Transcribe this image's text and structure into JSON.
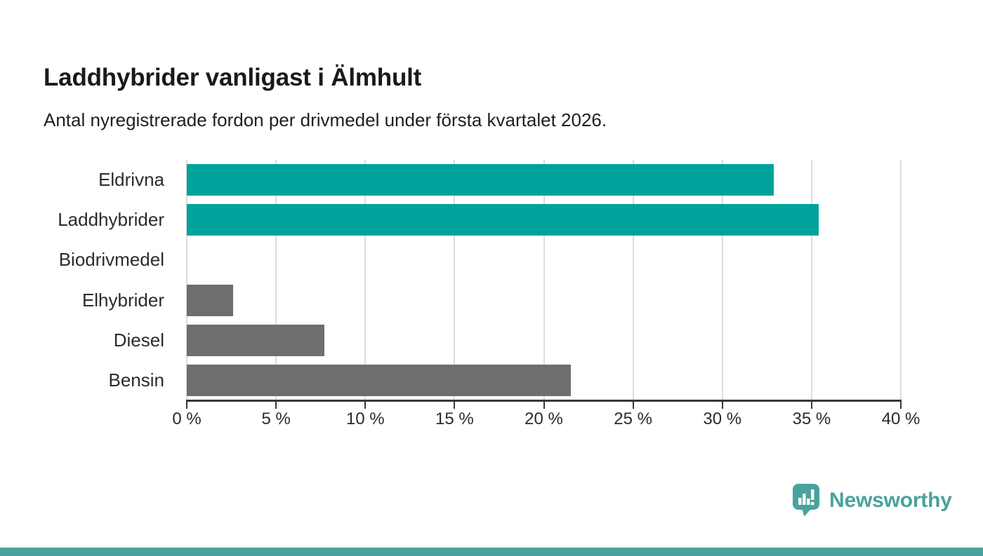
{
  "header": {
    "title": "Laddhybrider vanligast i Älmhult",
    "subtitle": "Antal nyregistrerade fordon per drivmedel under första kvartalet 2026."
  },
  "chart_data": {
    "type": "bar",
    "orientation": "horizontal",
    "title": "Laddhybrider vanligast i Älmhult",
    "subtitle": "Antal nyregistrerade fordon per drivmedel under första kvartalet 2026.",
    "categories": [
      "Eldrivna",
      "Laddhybrider",
      "Biodrivmedel",
      "Elhybrider",
      "Diesel",
      "Bensin"
    ],
    "values": [
      32.9,
      35.4,
      0,
      2.6,
      7.7,
      21.5
    ],
    "unit": "%",
    "bar_colors": [
      "#00a39b",
      "#00a39b",
      "#6e6e70",
      "#6e6e70",
      "#6e6e70",
      "#6e6e70"
    ],
    "xlim": [
      0,
      40
    ],
    "x_ticks": [
      0,
      5,
      10,
      15,
      20,
      25,
      30,
      35,
      40
    ],
    "x_tick_labels": [
      "0 %",
      "5 %",
      "10 %",
      "15 %",
      "20 %",
      "25 %",
      "30 %",
      "35 %",
      "40 %"
    ],
    "grid": true,
    "legend": "none"
  },
  "branding": {
    "logo_text": "Newsworthy",
    "logo_color": "#4aa29c",
    "icon": "bar-chart-speech-bubble"
  },
  "colors": {
    "highlight": "#00a39b",
    "muted": "#6e6e70",
    "gridline": "#dcdcdc",
    "axis": "#383838",
    "text": "#1f1f1f",
    "footer_strip": "#4aa29c"
  }
}
